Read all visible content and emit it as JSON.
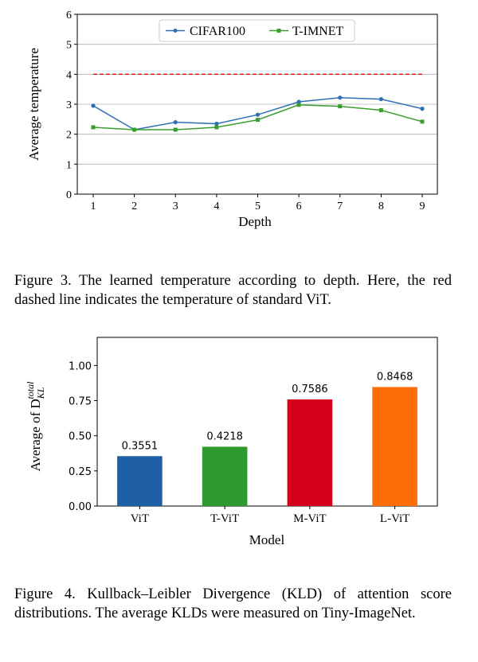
{
  "chart_data": [
    {
      "type": "line",
      "x": [
        1,
        2,
        3,
        4,
        5,
        6,
        7,
        8,
        9
      ],
      "xlabel": "Depth",
      "ylabel": "Average temperature",
      "ylim": [
        0,
        6
      ],
      "xticks": [
        "1",
        "2",
        "3",
        "4",
        "5",
        "6",
        "7",
        "8",
        "9"
      ],
      "yticks": [
        "0",
        "1",
        "2",
        "3",
        "4",
        "5",
        "6"
      ],
      "grid": true,
      "legend_position": "top-center",
      "series": [
        {
          "name": "CIFAR100",
          "color": "#2e6eb5",
          "marker": "circle",
          "values": [
            2.95,
            2.15,
            2.4,
            2.35,
            2.65,
            3.08,
            3.22,
            3.17,
            2.85
          ]
        },
        {
          "name": "T-IMNET",
          "color": "#3a9e2e",
          "marker": "square",
          "values": [
            2.23,
            2.15,
            2.15,
            2.23,
            2.48,
            2.98,
            2.93,
            2.8,
            2.42
          ]
        }
      ],
      "reference_line": {
        "y": 4,
        "color": "#ff0000",
        "style": "dashed"
      }
    },
    {
      "type": "bar",
      "categories": [
        "ViT",
        "T-ViT",
        "M-ViT",
        "L-ViT"
      ],
      "values": [
        0.3551,
        0.4218,
        0.7586,
        0.8468
      ],
      "value_labels": [
        "0.3551",
        "0.4218",
        "0.7586",
        "0.8468"
      ],
      "colors": [
        "#1f5fa6",
        "#2c9a2c",
        "#d6001c",
        "#ff6d0a"
      ],
      "xlabel": "Model",
      "ylabel_prefix": "Average of D",
      "ylabel_sub": "KL",
      "ylabel_sup": "total",
      "ylim": [
        0,
        1.2
      ],
      "yticks": [
        "0.00",
        "0.25",
        "0.50",
        "0.75",
        "1.00"
      ],
      "grid": false
    }
  ],
  "captions": {
    "figure3": "Figure 3. The learned temperature according to depth. Here, the red dashed line indicates the temperature of standard ViT.",
    "figure4": "Figure 4. Kullback–Leibler Divergence (KLD) of attention score distributions. The average KLDs were measured on Tiny-ImageNet."
  }
}
